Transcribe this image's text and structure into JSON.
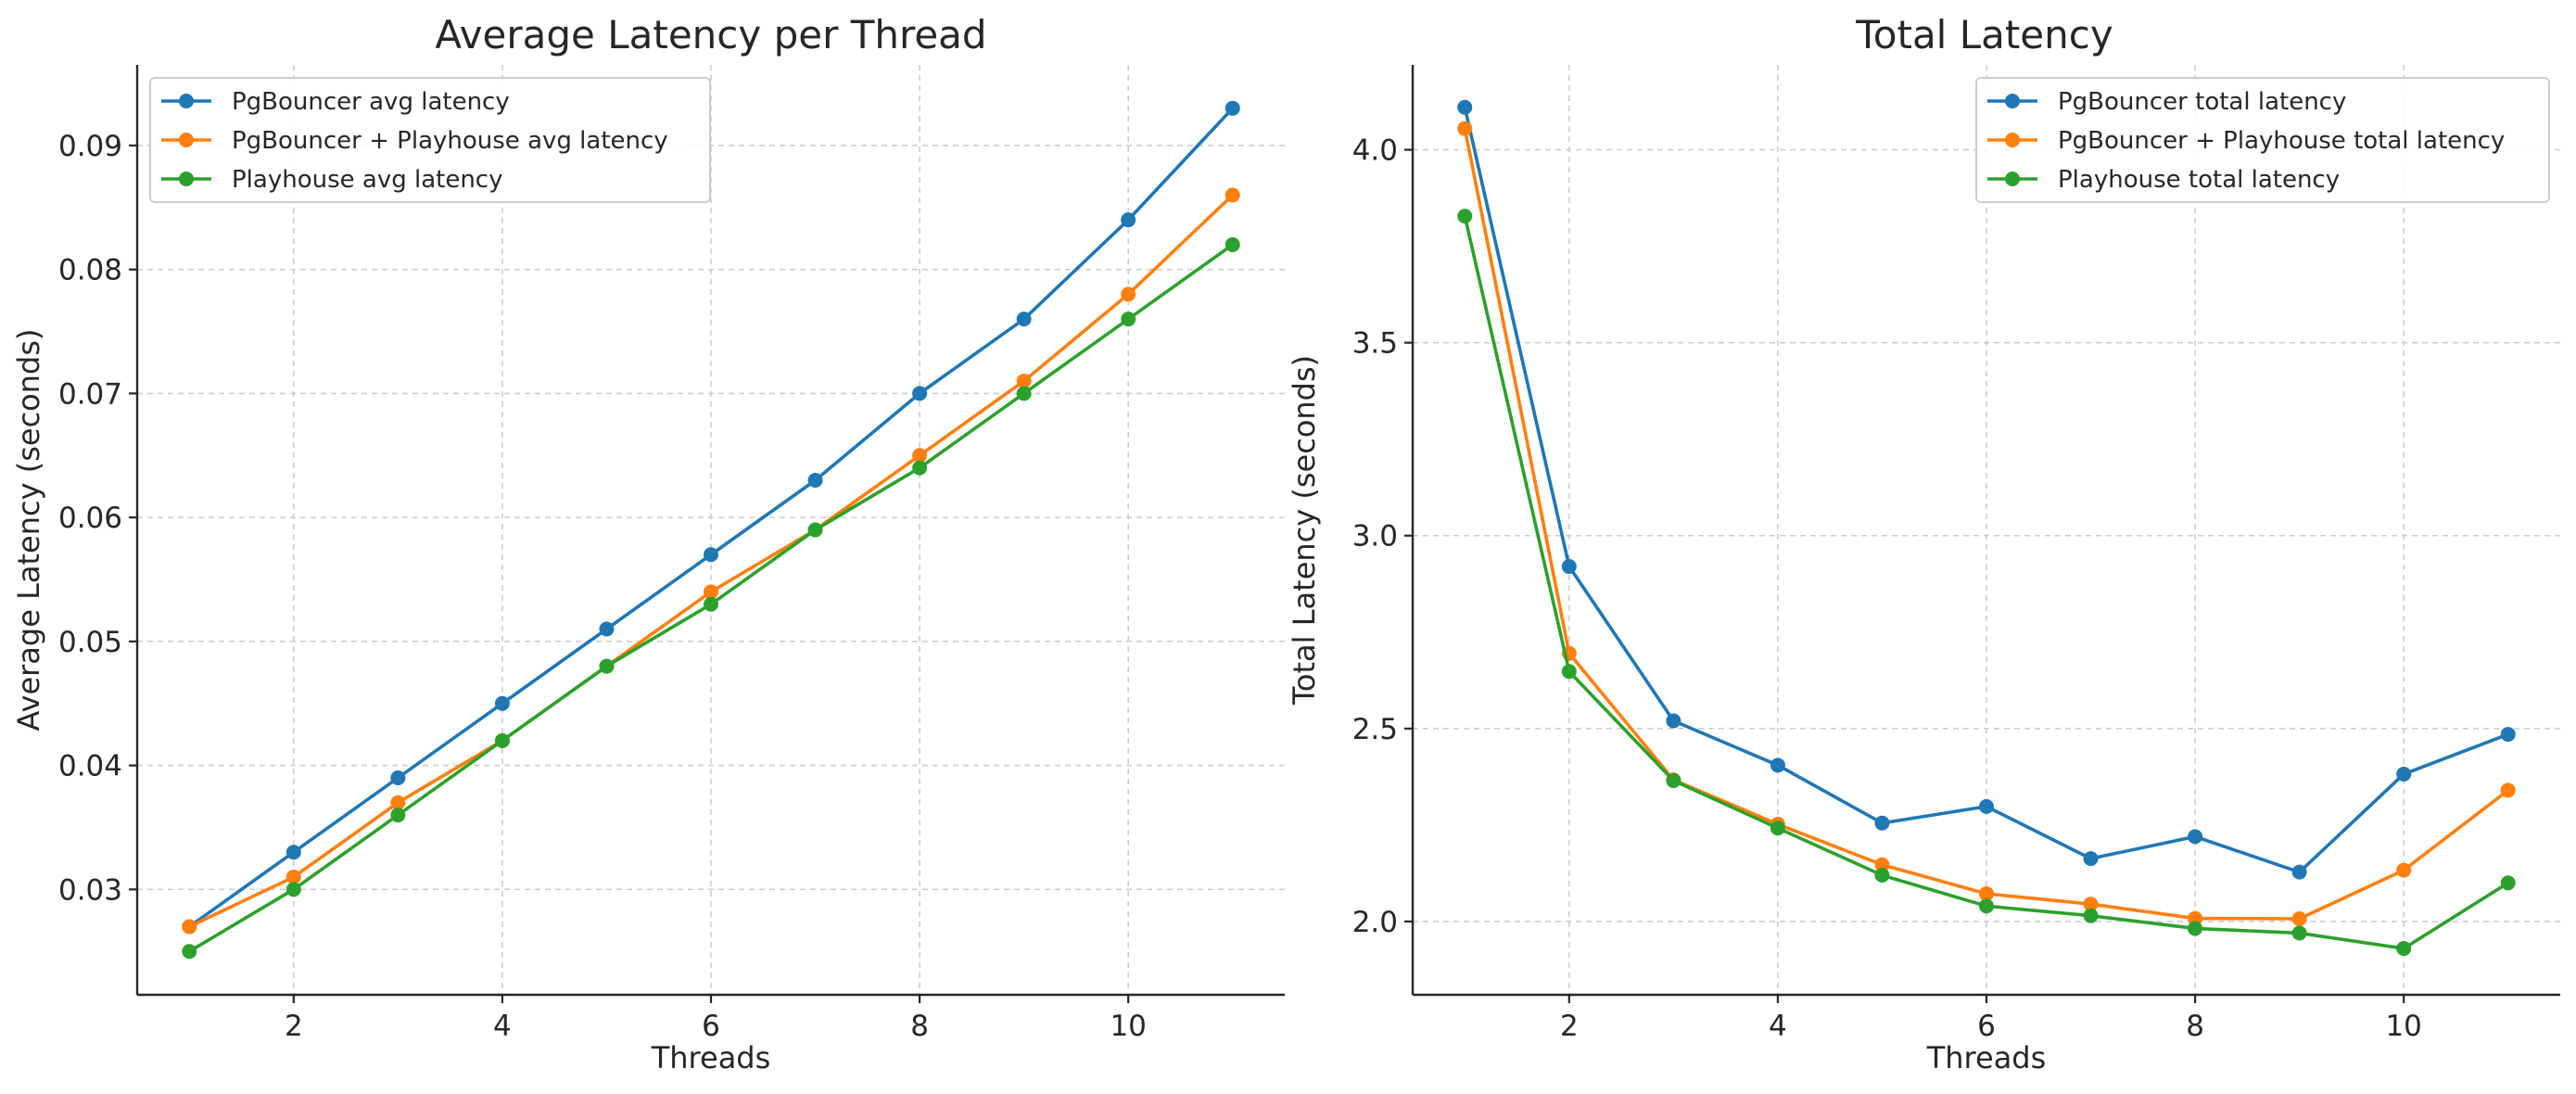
{
  "colors": {
    "pgbouncer": "#1f77b4",
    "pgbouncer_playhouse": "#ff7f0e",
    "playhouse": "#2ca02c"
  },
  "chart_data": [
    {
      "type": "line",
      "title": "Average Latency per Thread",
      "xlabel": "Threads",
      "ylabel": "Average Latency (seconds)",
      "x": [
        1,
        2,
        3,
        4,
        5,
        6,
        7,
        8,
        9,
        10,
        11
      ],
      "xlim": [
        0.5,
        11.5
      ],
      "ylim": [
        0.0215,
        0.0965
      ],
      "xticks": [
        2,
        4,
        6,
        8,
        10
      ],
      "yticks": [
        0.03,
        0.04,
        0.05,
        0.06,
        0.07,
        0.08,
        0.09
      ],
      "xtick_labels": [
        "2",
        "4",
        "6",
        "8",
        "10"
      ],
      "ytick_labels": [
        "0.03",
        "0.04",
        "0.05",
        "0.06",
        "0.07",
        "0.08",
        "0.09"
      ],
      "grid": true,
      "legend_position": "upper-left",
      "series": [
        {
          "name": "PgBouncer avg latency",
          "color": "#1f77b4",
          "values": [
            0.027,
            0.033,
            0.039,
            0.045,
            0.051,
            0.057,
            0.063,
            0.07,
            0.076,
            0.084,
            0.093
          ]
        },
        {
          "name": "PgBouncer + Playhouse avg latency",
          "color": "#ff7f0e",
          "values": [
            0.027,
            0.031,
            0.037,
            0.042,
            0.048,
            0.054,
            0.059,
            0.065,
            0.071,
            0.078,
            0.086
          ]
        },
        {
          "name": "Playhouse avg latency",
          "color": "#2ca02c",
          "values": [
            0.025,
            0.03,
            0.036,
            0.042,
            0.048,
            0.053,
            0.059,
            0.064,
            0.07,
            0.076,
            0.082
          ]
        }
      ]
    },
    {
      "type": "line",
      "title": "Total Latency",
      "xlabel": "Threads",
      "ylabel": "Total Latency (seconds)",
      "x": [
        1,
        2,
        3,
        4,
        5,
        6,
        7,
        8,
        9,
        10,
        11
      ],
      "xlim": [
        0.5,
        11.5
      ],
      "ylim": [
        1.81,
        4.22
      ],
      "xticks": [
        2,
        4,
        6,
        8,
        10
      ],
      "yticks": [
        2.0,
        2.5,
        3.0,
        3.5,
        4.0
      ],
      "xtick_labels": [
        "2",
        "4",
        "6",
        "8",
        "10"
      ],
      "ytick_labels": [
        "2.0",
        "2.5",
        "3.0",
        "3.5",
        "4.0"
      ],
      "grid": true,
      "legend_position": "upper-right",
      "series": [
        {
          "name": "PgBouncer total latency",
          "color": "#1f77b4",
          "values": [
            4.11,
            2.92,
            2.52,
            2.405,
            2.255,
            2.298,
            2.163,
            2.22,
            2.128,
            2.382,
            2.485
          ]
        },
        {
          "name": "PgBouncer + Playhouse total latency",
          "color": "#ff7f0e",
          "values": [
            4.055,
            2.695,
            2.367,
            2.252,
            2.147,
            2.072,
            2.045,
            2.008,
            2.007,
            2.133,
            2.34
          ]
        },
        {
          "name": "Playhouse total latency",
          "color": "#2ca02c",
          "values": [
            3.828,
            2.648,
            2.365,
            2.242,
            2.12,
            2.04,
            2.015,
            1.982,
            1.97,
            1.93,
            2.1
          ]
        }
      ]
    }
  ]
}
